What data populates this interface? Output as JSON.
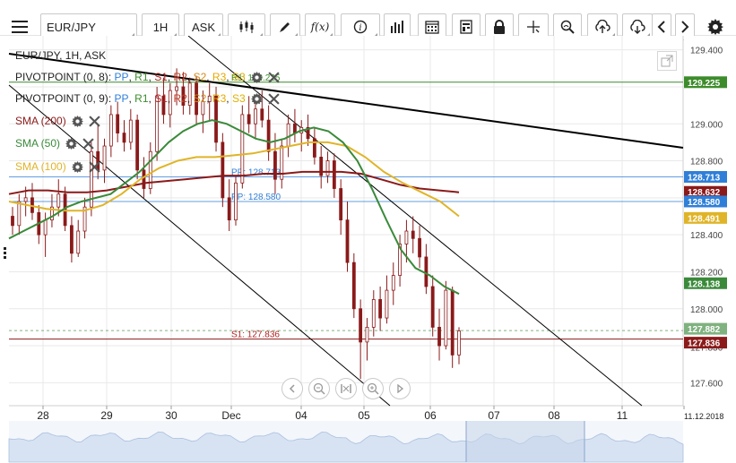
{
  "toolbar": {
    "menu_icon": "hamburger-icon",
    "symbol": "EUR/JPY",
    "timeframe": "1H",
    "price_type": "ASK",
    "buttons": [
      "candle-type-icon",
      "draw-icon",
      "function-icon",
      "info-icon",
      "indicators-icon",
      "calendar-icon",
      "template-icon",
      "lock-icon",
      "crosshair-icon",
      "zoom-icon",
      "upload-icon",
      "download-icon",
      "prev-icon",
      "next-icon",
      "settings-icon"
    ],
    "function_label": "f(x)"
  },
  "legend": {
    "title": "EUR/JPY, 1H, ASK",
    "pivot1": {
      "name": "PIVOTPOINT (0, 8)",
      "parts": [
        ": ",
        "PP",
        ", ",
        "R1",
        ", ",
        "S1",
        ", ",
        "R2",
        ", ",
        "S2",
        ", ",
        "R3",
        ", ",
        "S3"
      ]
    },
    "pivot2": {
      "name": "PIVOTPOINT (0, 9)",
      "parts": [
        ": ",
        "PP",
        ", ",
        "R1",
        ", ",
        "S1",
        ", ",
        "R2",
        ", ",
        "S2",
        ", ",
        "R3",
        ", ",
        "S3"
      ]
    },
    "sma200": "SMA (200)",
    "sma50": "SMA (50)",
    "sma100": "SMA (100)"
  },
  "colors": {
    "pp": "#2f7fd8",
    "r1": "#3d8c2c",
    "s1": "#b21f1f",
    "r2": "#c23b22",
    "s2": "#d08b1a",
    "r3": "#e6a800",
    "s3": "#e0b000",
    "sma200": "#8b1a1a",
    "sma50": "#3a8a3a",
    "sma100": "#e0b428",
    "candle": "#8a1a1a",
    "trend": "#000000",
    "grid": "#e9e9e9"
  },
  "chart_data": {
    "type": "candlestick",
    "price_axis": {
      "min": 127.5,
      "max": 129.5,
      "ticks": [
        129.4,
        129.2,
        129.0,
        128.8,
        128.6,
        128.4,
        128.2,
        128.0,
        127.8,
        127.6
      ]
    },
    "price_tick_labels": [
      "129.400",
      "129.000",
      "128.800",
      "128.400",
      "128.200",
      "128.000",
      "127.600"
    ],
    "time_labels": [
      "28",
      "29",
      "30",
      "Dec",
      "04",
      "05",
      "06",
      "07",
      "08",
      "11",
      "11.12.2018"
    ],
    "price_tags": [
      {
        "label": "129.225",
        "value": 129.225,
        "color": "#3d8c2c"
      },
      {
        "label": "128.713",
        "value": 128.713,
        "color": "#2f7fd8"
      },
      {
        "label": "128.632",
        "value": 128.632,
        "color": "#8b1a1a"
      },
      {
        "label": "128.580",
        "value": 128.58,
        "color": "#2f7fd8"
      },
      {
        "label": "128.491",
        "value": 128.491,
        "color": "#e0b428"
      },
      {
        "label": "128.138",
        "value": 128.138,
        "color": "#3a8a3a"
      },
      {
        "label": "127.882",
        "value": 127.882,
        "color": "#7fb27f"
      },
      {
        "label": "127.836",
        "value": 127.836,
        "color": "#8b1a1a"
      }
    ],
    "level_labels": [
      {
        "label": "R1: 129.225",
        "value": 129.225,
        "color": "#3d8c2c"
      },
      {
        "label": "PP: 128.713",
        "value": 128.713,
        "color": "#2f7fd8"
      },
      {
        "label": "PP: 128.580",
        "value": 128.58,
        "color": "#2f7fd8"
      },
      {
        "label": "S1: 127.836",
        "value": 127.836,
        "color": "#b21f1f"
      }
    ],
    "partial_tick_label": "127.836",
    "candles": [
      [
        128.5,
        128.55,
        128.4,
        128.45
      ],
      [
        128.45,
        128.62,
        128.4,
        128.58
      ],
      [
        128.58,
        128.66,
        128.5,
        128.6
      ],
      [
        128.6,
        128.68,
        128.48,
        128.52
      ],
      [
        128.52,
        128.56,
        128.35,
        128.4
      ],
      [
        128.4,
        128.52,
        128.28,
        128.48
      ],
      [
        128.48,
        128.62,
        128.44,
        128.55
      ],
      [
        128.55,
        128.7,
        128.5,
        128.62
      ],
      [
        128.62,
        128.66,
        128.42,
        128.45
      ],
      [
        128.45,
        128.5,
        128.25,
        128.3
      ],
      [
        128.3,
        128.48,
        128.28,
        128.42
      ],
      [
        128.42,
        128.6,
        128.38,
        128.55
      ],
      [
        128.55,
        128.9,
        128.5,
        128.85
      ],
      [
        128.85,
        129.0,
        128.7,
        128.75
      ],
      [
        128.75,
        128.92,
        128.68,
        128.88
      ],
      [
        128.88,
        129.1,
        128.82,
        129.05
      ],
      [
        129.05,
        129.12,
        128.9,
        128.95
      ],
      [
        128.95,
        129.02,
        128.85,
        128.9
      ],
      [
        128.9,
        129.08,
        128.86,
        129.02
      ],
      [
        129.02,
        129.05,
        128.7,
        128.75
      ],
      [
        128.75,
        128.82,
        128.6,
        128.65
      ],
      [
        128.65,
        128.9,
        128.62,
        128.85
      ],
      [
        128.85,
        129.2,
        128.8,
        129.15
      ],
      [
        129.15,
        129.25,
        129.0,
        129.05
      ],
      [
        129.05,
        129.22,
        128.98,
        129.18
      ],
      [
        129.18,
        129.3,
        129.1,
        129.2
      ],
      [
        129.2,
        129.28,
        129.05,
        129.1
      ],
      [
        129.1,
        129.25,
        129.05,
        129.22
      ],
      [
        129.22,
        129.26,
        129.0,
        129.05
      ],
      [
        129.05,
        129.18,
        128.95,
        129.12
      ],
      [
        129.12,
        129.22,
        129.02,
        129.15
      ],
      [
        129.15,
        129.2,
        128.85,
        128.9
      ],
      [
        128.9,
        128.95,
        128.55,
        128.6
      ],
      [
        128.6,
        128.7,
        128.42,
        128.48
      ],
      [
        128.48,
        128.72,
        128.45,
        128.68
      ],
      [
        128.68,
        129.1,
        128.65,
        129.05
      ],
      [
        129.05,
        129.15,
        128.95,
        129.0
      ],
      [
        129.0,
        129.12,
        128.92,
        129.08
      ],
      [
        129.08,
        129.18,
        128.98,
        129.02
      ],
      [
        129.02,
        129.1,
        128.8,
        128.85
      ],
      [
        128.85,
        128.95,
        128.62,
        128.7
      ],
      [
        128.7,
        128.92,
        128.65,
        128.88
      ],
      [
        128.88,
        129.05,
        128.82,
        129.0
      ],
      [
        129.0,
        129.08,
        128.9,
        128.95
      ],
      [
        128.95,
        129.02,
        128.85,
        128.98
      ],
      [
        128.98,
        129.05,
        128.88,
        128.92
      ],
      [
        128.92,
        128.98,
        128.78,
        128.82
      ],
      [
        128.82,
        128.88,
        128.65,
        128.72
      ],
      [
        128.72,
        128.85,
        128.68,
        128.8
      ],
      [
        128.8,
        128.84,
        128.6,
        128.65
      ],
      [
        128.65,
        128.7,
        128.4,
        128.48
      ],
      [
        128.48,
        128.58,
        128.2,
        128.25
      ],
      [
        128.25,
        128.3,
        127.95,
        128.0
      ],
      [
        128.0,
        128.05,
        127.62,
        127.82
      ],
      [
        127.82,
        127.95,
        127.72,
        127.9
      ],
      [
        127.9,
        128.1,
        127.85,
        128.05
      ],
      [
        128.05,
        128.12,
        127.88,
        127.95
      ],
      [
        127.95,
        128.18,
        127.92,
        128.1
      ],
      [
        128.1,
        128.25,
        128.02,
        128.18
      ],
      [
        128.18,
        128.4,
        128.12,
        128.35
      ],
      [
        128.35,
        128.48,
        128.25,
        128.42
      ],
      [
        128.42,
        128.5,
        128.3,
        128.38
      ],
      [
        128.38,
        128.45,
        128.22,
        128.28
      ],
      [
        128.28,
        128.35,
        128.08,
        128.12
      ],
      [
        128.12,
        128.18,
        127.85,
        127.9
      ],
      [
        127.9,
        128.0,
        127.72,
        127.8
      ],
      [
        127.8,
        128.15,
        127.78,
        128.1
      ],
      [
        128.1,
        128.12,
        127.68,
        127.75
      ],
      [
        127.75,
        127.9,
        127.7,
        127.88
      ]
    ],
    "sma50": [
      128.38,
      128.42,
      128.46,
      128.5,
      128.55,
      128.58,
      128.6,
      128.62,
      128.68,
      128.74,
      128.82,
      128.9,
      128.96,
      129.0,
      129.02,
      129.0,
      128.96,
      128.92,
      128.9,
      128.92,
      128.96,
      128.98,
      128.96,
      128.9,
      128.8,
      128.65,
      128.48,
      128.32,
      128.22,
      128.18,
      128.12,
      128.08
    ],
    "sma100": [
      128.58,
      128.56,
      128.54,
      128.53,
      128.53,
      128.56,
      128.62,
      128.7,
      128.76,
      128.8,
      128.82,
      128.82,
      128.83,
      128.84,
      128.86,
      128.88,
      128.9,
      128.9,
      128.88,
      128.82,
      128.74,
      128.68,
      128.63,
      128.58,
      128.5
    ],
    "sma200": [
      128.62,
      128.64,
      128.64,
      128.63,
      128.63,
      128.64,
      128.66,
      128.68,
      128.69,
      128.7,
      128.71,
      128.72,
      128.72,
      128.73,
      128.73,
      128.74,
      128.74,
      128.74,
      128.73,
      128.7,
      128.67,
      128.65,
      128.64,
      128.63
    ]
  }
}
